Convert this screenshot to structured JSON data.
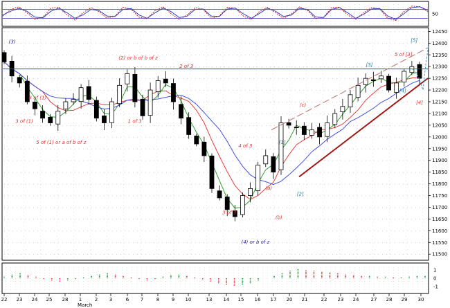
{
  "chart_data": [
    {
      "panel": "oscillator",
      "type": "line",
      "y_tick_labels": [
        "50"
      ],
      "ylim": [
        0,
        100
      ],
      "series": [
        {
          "color": "#d02020",
          "style": "dashed",
          "values": [
            40,
            70,
            82,
            55,
            25,
            35,
            75,
            80,
            45,
            22,
            55,
            78,
            60,
            30,
            40,
            80,
            70,
            35,
            28,
            65,
            82,
            50,
            25,
            45,
            78,
            70,
            30,
            40,
            80,
            75,
            40,
            25,
            60,
            80,
            55,
            30,
            50,
            82,
            65,
            28,
            35,
            78,
            80,
            45,
            25,
            55,
            78,
            72,
            30,
            20,
            60,
            85,
            82,
            60
          ]
        },
        {
          "color": "#3040c0",
          "style": "solid",
          "values": [
            45,
            62,
            75,
            62,
            35,
            32,
            62,
            76,
            55,
            30,
            45,
            70,
            65,
            40,
            38,
            70,
            74,
            45,
            30,
            55,
            76,
            60,
            33,
            40,
            70,
            72,
            40,
            38,
            72,
            76,
            50,
            30,
            52,
            75,
            62,
            38,
            45,
            75,
            70,
            36,
            33,
            70,
            78,
            55,
            30,
            48,
            72,
            74,
            40,
            25,
            50,
            78,
            82,
            66
          ]
        }
      ],
      "reference_lines": [
        70,
        30
      ]
    },
    {
      "panel": "price",
      "type": "candlestick",
      "y_tick_labels": [
        "12450",
        "12400",
        "12350",
        "12300",
        "12250",
        "12200",
        "12150",
        "12100",
        "12050",
        "12000",
        "11950",
        "11900",
        "11850",
        "11800",
        "11750",
        "11700",
        "11650",
        "11600",
        "11550",
        "11500"
      ],
      "ylim": [
        11480,
        12460
      ],
      "x_tick_labels": [
        "22",
        "23",
        "24",
        "25",
        "28",
        "1",
        "2",
        "3",
        "6",
        "7",
        "8",
        "9",
        "10",
        "13",
        "14",
        "15",
        "16",
        "17",
        "20",
        "21",
        "22",
        "23",
        "24",
        "27",
        "28",
        "29",
        "30"
      ],
      "x_month_label": "March",
      "close": [
        12320,
        12260,
        12230,
        12150,
        12120,
        12080,
        12060,
        12110,
        12150,
        12160,
        12210,
        12160,
        12080,
        12060,
        12150,
        12220,
        12270,
        12150,
        12090,
        12200,
        12240,
        12230,
        12150,
        12080,
        12010,
        11970,
        11920,
        11780,
        11740,
        11690,
        11660,
        11750,
        11780,
        11880,
        11920,
        11850,
        12060,
        12050,
        12040,
        12010,
        12030,
        12000,
        12060,
        12100,
        12130,
        12180,
        12220,
        12250,
        12240,
        12260,
        12200,
        12230,
        12280,
        12300,
        12250
      ],
      "horizontal_line": 12290,
      "ma_colors": [
        "#30a030",
        "#e04040",
        "#4050e0"
      ],
      "wave_labels": [
        {
          "text": "(3)",
          "color": "#2020a0"
        },
        {
          "text": "4 of (1)",
          "color": "#e03030"
        },
        {
          "text": "3 of (1)",
          "color": "#e03030"
        },
        {
          "text": "5 of (1) or a of b of z",
          "color": "#e03030"
        },
        {
          "text": "(2) or b of b of z",
          "color": "#e03030"
        },
        {
          "text": "1 of 3",
          "color": "#e03030"
        },
        {
          "text": "2 of 3",
          "color": "#e03030"
        },
        {
          "text": "4 of 3",
          "color": "#e03030"
        },
        {
          "text": "3 of 3",
          "color": "#e03030"
        },
        {
          "text": "(4) or b of z",
          "color": "#2020a0"
        },
        {
          "text": "(a)",
          "color": "#e03030"
        },
        {
          "text": "(b)",
          "color": "#e03030"
        },
        {
          "text": "(c)",
          "color": "#e03030"
        },
        {
          "text": "[1]",
          "color": "#2080a0"
        },
        {
          "text": "[2]",
          "color": "#2080a0"
        },
        {
          "text": "[3]",
          "color": "#2080a0"
        },
        {
          "text": "[4]",
          "color": "#2080a0"
        },
        {
          "text": "5 of [3]",
          "color": "#e03030"
        },
        {
          "text": "[5]",
          "color": "#2080a0"
        },
        {
          "text": "[4]",
          "color": "#e03030"
        }
      ]
    },
    {
      "panel": "histogram",
      "type": "bar",
      "y_tick_labels": [
        "1",
        "0",
        "-1"
      ],
      "ylim": [
        -1.5,
        1.5
      ],
      "values": [
        0.2,
        0.5,
        0.6,
        0.4,
        0.2,
        -0.1,
        -0.3,
        -0.4,
        -0.3,
        -0.1,
        0.1,
        0.3,
        0.5,
        0.6,
        0.5,
        0.3,
        0.1,
        -0.1,
        -0.3,
        -0.1,
        0.2,
        0.4,
        0.5,
        0.3,
        0.1,
        -0.2,
        -0.4,
        -0.6,
        -0.8,
        -0.9,
        -0.8,
        -0.6,
        -0.3,
        0.0,
        0.3,
        0.6,
        0.9,
        1.1,
        1.0,
        0.9,
        0.8,
        0.7,
        0.6,
        0.5,
        0.4,
        0.3,
        0.3,
        0.2,
        0.2,
        0.1,
        0.1,
        0.2,
        0.3,
        0.3
      ]
    }
  ]
}
